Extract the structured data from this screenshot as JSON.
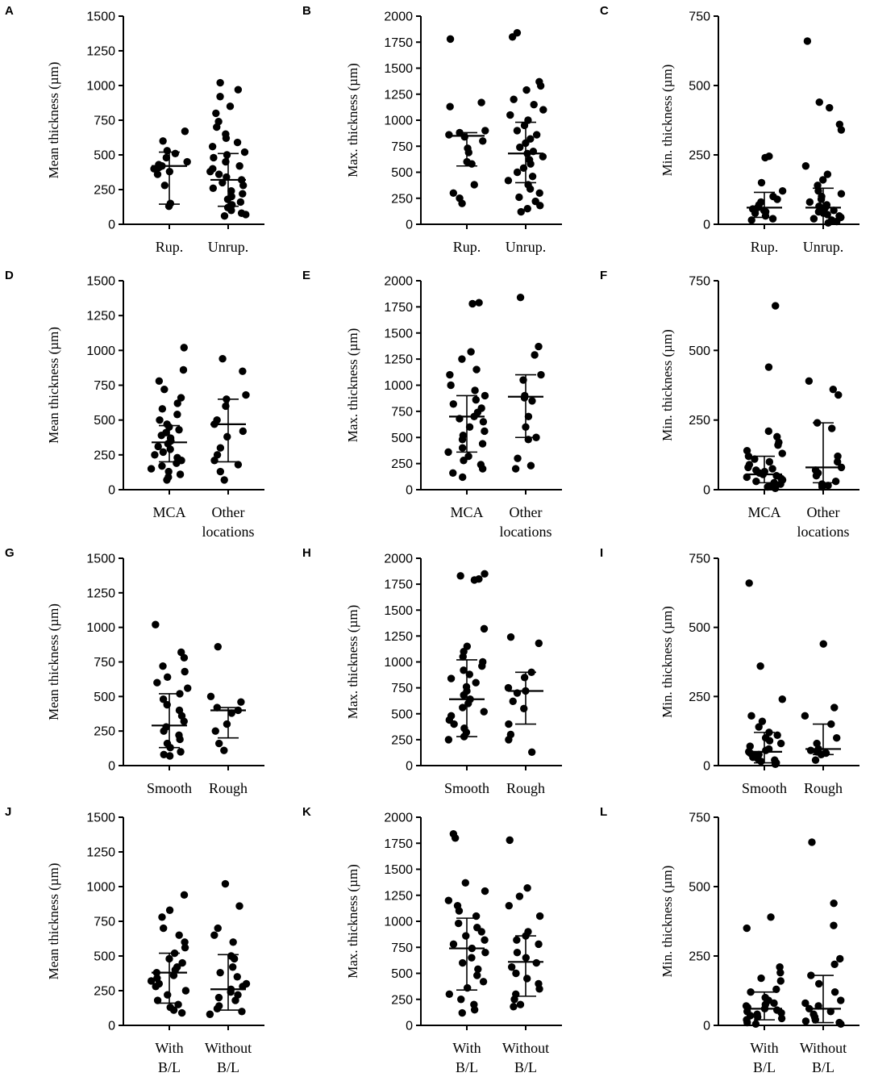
{
  "figure": {
    "panels": [
      "A",
      "B",
      "C",
      "D",
      "E",
      "F",
      "G",
      "H",
      "I",
      "J",
      "K",
      "L"
    ]
  },
  "chart_data": [
    {
      "panel": "A",
      "type": "scatter",
      "ylabel": "Mean thickness (µm)",
      "ylim": [
        0,
        1500
      ],
      "yticks": [
        "0",
        "250",
        "500",
        "750",
        "1000",
        "1250",
        "1500"
      ],
      "categories": [
        {
          "label": [
            "Rup."
          ],
          "center": 420,
          "lower": 145,
          "upper": 520,
          "points": [
            670,
            600,
            530,
            510,
            480,
            450,
            430,
            420,
            410,
            400,
            380,
            360,
            280,
            150,
            130
          ]
        },
        {
          "label": [
            "Unrup."
          ],
          "center": 320,
          "lower": 130,
          "upper": 510,
          "points": [
            1020,
            970,
            920,
            850,
            800,
            740,
            700,
            650,
            620,
            590,
            560,
            520,
            500,
            480,
            450,
            420,
            400,
            380,
            360,
            340,
            320,
            300,
            280,
            260,
            240,
            220,
            200,
            180,
            160,
            140,
            120,
            100,
            80,
            70,
            60
          ]
        }
      ]
    },
    {
      "panel": "B",
      "type": "scatter",
      "ylabel": "Max. thickness (µm)",
      "ylim": [
        0,
        2000
      ],
      "yticks": [
        "0",
        "250",
        "500",
        "750",
        "1000",
        "1250",
        "1500",
        "1750",
        "2000"
      ],
      "categories": [
        {
          "label": [
            "Rup."
          ],
          "center": 850,
          "lower": 560,
          "upper": 880,
          "points": [
            1780,
            1170,
            1130,
            900,
            880,
            860,
            840,
            800,
            730,
            690,
            600,
            580,
            380,
            300,
            250,
            200
          ]
        },
        {
          "label": [
            "Unrup."
          ],
          "center": 680,
          "lower": 400,
          "upper": 980,
          "points": [
            1840,
            1800,
            1370,
            1330,
            1290,
            1200,
            1150,
            1100,
            1050,
            1000,
            950,
            900,
            860,
            820,
            780,
            740,
            700,
            680,
            650,
            620,
            580,
            540,
            500,
            460,
            420,
            380,
            340,
            300,
            260,
            220,
            180,
            150,
            120
          ]
        }
      ]
    },
    {
      "panel": "C",
      "type": "scatter",
      "ylabel": "Min. thickness (µm)",
      "ylim": [
        0,
        750
      ],
      "yticks": [
        "0",
        "250",
        "500",
        "750"
      ],
      "categories": [
        {
          "label": [
            "Rup."
          ],
          "center": 60,
          "lower": 25,
          "upper": 115,
          "points": [
            245,
            240,
            150,
            120,
            100,
            90,
            80,
            70,
            60,
            55,
            50,
            45,
            40,
            30,
            20,
            15
          ]
        },
        {
          "label": [
            "Unrup."
          ],
          "center": 60,
          "lower": 0,
          "upper": 130,
          "points": [
            660,
            440,
            420,
            360,
            340,
            210,
            180,
            160,
            140,
            120,
            110,
            100,
            90,
            80,
            70,
            65,
            60,
            55,
            50,
            45,
            40,
            35,
            30,
            25,
            20,
            15,
            10,
            5
          ]
        }
      ]
    },
    {
      "panel": "D",
      "type": "scatter",
      "ylabel": "Mean thickness (µm)",
      "ylim": [
        0,
        1500
      ],
      "yticks": [
        "0",
        "250",
        "500",
        "750",
        "1000",
        "1250",
        "1500"
      ],
      "categories": [
        {
          "label": [
            "MCA"
          ],
          "center": 340,
          "lower": 200,
          "upper": 460,
          "points": [
            1020,
            860,
            780,
            720,
            660,
            620,
            580,
            540,
            500,
            470,
            450,
            430,
            410,
            390,
            370,
            350,
            330,
            310,
            290,
            270,
            250,
            230,
            210,
            190,
            170,
            150,
            130,
            110,
            90,
            70
          ]
        },
        {
          "label": [
            "Other",
            "locations"
          ],
          "center": 470,
          "lower": 200,
          "upper": 650,
          "points": [
            940,
            850,
            680,
            650,
            600,
            500,
            470,
            420,
            380,
            300,
            250,
            210,
            180,
            130,
            70
          ]
        }
      ]
    },
    {
      "panel": "E",
      "type": "scatter",
      "ylabel": "Max. thickness (µm)",
      "ylim": [
        0,
        2000
      ],
      "yticks": [
        "0",
        "250",
        "500",
        "750",
        "1000",
        "1250",
        "1500",
        "1750",
        "2000"
      ],
      "categories": [
        {
          "label": [
            "MCA"
          ],
          "center": 700,
          "lower": 360,
          "upper": 900,
          "points": [
            1790,
            1780,
            1320,
            1250,
            1150,
            1100,
            1000,
            950,
            900,
            860,
            820,
            780,
            740,
            700,
            680,
            650,
            600,
            560,
            520,
            480,
            440,
            400,
            360,
            320,
            280,
            240,
            200,
            160,
            120
          ]
        },
        {
          "label": [
            "Other",
            "locations"
          ],
          "center": 890,
          "lower": 500,
          "upper": 1100,
          "points": [
            1840,
            1370,
            1290,
            1100,
            1050,
            900,
            880,
            850,
            700,
            600,
            500,
            480,
            300,
            230,
            200
          ]
        }
      ]
    },
    {
      "panel": "F",
      "type": "scatter",
      "ylabel": "Min. thickness (µm)",
      "ylim": [
        0,
        750
      ],
      "yticks": [
        "0",
        "250",
        "500",
        "750"
      ],
      "categories": [
        {
          "label": [
            "MCA"
          ],
          "center": 55,
          "lower": 25,
          "upper": 120,
          "points": [
            660,
            440,
            210,
            190,
            170,
            160,
            140,
            130,
            120,
            110,
            100,
            90,
            80,
            75,
            70,
            65,
            60,
            55,
            50,
            45,
            40,
            35,
            30,
            25,
            20,
            15,
            10,
            5
          ]
        },
        {
          "label": [
            "Other",
            "locations"
          ],
          "center": 80,
          "lower": 25,
          "upper": 240,
          "points": [
            390,
            360,
            340,
            240,
            220,
            120,
            100,
            80,
            70,
            60,
            50,
            30,
            20,
            15,
            10
          ]
        }
      ]
    },
    {
      "panel": "G",
      "type": "scatter",
      "ylabel": "Mean thickness (µm)",
      "ylim": [
        0,
        1500
      ],
      "yticks": [
        "0",
        "250",
        "500",
        "750",
        "1000",
        "1250",
        "1500"
      ],
      "categories": [
        {
          "label": [
            "Smooth"
          ],
          "center": 290,
          "lower": 130,
          "upper": 520,
          "points": [
            1020,
            820,
            780,
            720,
            680,
            640,
            600,
            560,
            520,
            480,
            440,
            400,
            360,
            320,
            280,
            250,
            220,
            190,
            160,
            130,
            100,
            80,
            70
          ]
        },
        {
          "label": [
            "Rough"
          ],
          "center": 400,
          "lower": 200,
          "upper": 420,
          "points": [
            860,
            500,
            460,
            420,
            400,
            380,
            300,
            250,
            160,
            110
          ]
        }
      ]
    },
    {
      "panel": "H",
      "type": "scatter",
      "ylabel": "Max. thickness (µm)",
      "ylim": [
        0,
        2000
      ],
      "yticks": [
        "0",
        "250",
        "500",
        "750",
        "1000",
        "1250",
        "1500",
        "1750",
        "2000"
      ],
      "categories": [
        {
          "label": [
            "Smooth"
          ],
          "center": 640,
          "lower": 280,
          "upper": 1020,
          "points": [
            1850,
            1830,
            1800,
            1790,
            1320,
            1150,
            1100,
            1050,
            1000,
            960,
            920,
            880,
            840,
            800,
            760,
            720,
            680,
            640,
            600,
            560,
            520,
            480,
            440,
            400,
            360,
            320,
            280,
            250
          ]
        },
        {
          "label": [
            "Rough"
          ],
          "center": 720,
          "lower": 400,
          "upper": 900,
          "points": [
            1240,
            1180,
            900,
            850,
            750,
            720,
            700,
            620,
            550,
            400,
            300,
            250,
            130
          ]
        }
      ]
    },
    {
      "panel": "I",
      "type": "scatter",
      "ylabel": "Min. thickness (µm)",
      "ylim": [
        0,
        750
      ],
      "yticks": [
        "0",
        "250",
        "500",
        "750"
      ],
      "categories": [
        {
          "label": [
            "Smooth"
          ],
          "center": 50,
          "lower": 10,
          "upper": 120,
          "points": [
            660,
            360,
            240,
            180,
            160,
            140,
            120,
            110,
            100,
            90,
            80,
            70,
            60,
            55,
            50,
            45,
            40,
            35,
            30,
            25,
            20,
            15,
            10,
            5
          ]
        },
        {
          "label": [
            "Rough"
          ],
          "center": 60,
          "lower": 40,
          "upper": 150,
          "points": [
            440,
            210,
            180,
            150,
            100,
            80,
            60,
            55,
            50,
            45,
            40,
            20
          ]
        }
      ]
    },
    {
      "panel": "J",
      "type": "scatter",
      "ylabel": "Mean thickness (µm)",
      "ylim": [
        0,
        1500
      ],
      "yticks": [
        "0",
        "250",
        "500",
        "750",
        "1000",
        "1250",
        "1500"
      ],
      "categories": [
        {
          "label": [
            "With",
            "B/L"
          ],
          "center": 380,
          "lower": 160,
          "upper": 520,
          "points": [
            940,
            830,
            780,
            700,
            650,
            600,
            560,
            520,
            480,
            450,
            420,
            400,
            380,
            360,
            340,
            320,
            300,
            280,
            250,
            220,
            180,
            150,
            130,
            110,
            90
          ]
        },
        {
          "label": [
            "Without",
            "B/L"
          ],
          "center": 260,
          "lower": 110,
          "upper": 510,
          "points": [
            1020,
            860,
            700,
            650,
            600,
            500,
            480,
            420,
            380,
            350,
            300,
            280,
            260,
            240,
            220,
            200,
            180,
            140,
            120,
            100,
            80
          ]
        }
      ]
    },
    {
      "panel": "K",
      "type": "scatter",
      "ylabel": "Max. thickness (µm)",
      "ylim": [
        0,
        2000
      ],
      "yticks": [
        "0",
        "250",
        "500",
        "750",
        "1000",
        "1250",
        "1500",
        "1750",
        "2000"
      ],
      "categories": [
        {
          "label": [
            "With",
            "B/L"
          ],
          "center": 740,
          "lower": 340,
          "upper": 1030,
          "points": [
            1840,
            1800,
            1370,
            1290,
            1200,
            1150,
            1100,
            1050,
            980,
            940,
            900,
            860,
            820,
            780,
            740,
            700,
            650,
            600,
            540,
            480,
            420,
            360,
            300,
            250,
            200,
            150,
            120
          ]
        },
        {
          "label": [
            "Without",
            "B/L"
          ],
          "center": 610,
          "lower": 280,
          "upper": 860,
          "points": [
            1780,
            1320,
            1240,
            1150,
            1050,
            900,
            860,
            820,
            780,
            700,
            650,
            600,
            560,
            500,
            450,
            400,
            350,
            300,
            250,
            200,
            180
          ]
        }
      ]
    },
    {
      "panel": "L",
      "type": "scatter",
      "ylabel": "Min. thickness (µm)",
      "ylim": [
        0,
        750
      ],
      "yticks": [
        "0",
        "250",
        "500",
        "750"
      ],
      "categories": [
        {
          "label": [
            "With",
            "B/L"
          ],
          "center": 60,
          "lower": 20,
          "upper": 120,
          "points": [
            390,
            350,
            210,
            190,
            170,
            160,
            130,
            120,
            100,
            90,
            80,
            75,
            70,
            65,
            60,
            55,
            50,
            45,
            40,
            35,
            30,
            25,
            20,
            10,
            5
          ]
        },
        {
          "label": [
            "Without",
            "B/L"
          ],
          "center": 60,
          "lower": 10,
          "upper": 180,
          "points": [
            660,
            440,
            360,
            240,
            220,
            180,
            150,
            120,
            90,
            80,
            70,
            60,
            50,
            40,
            30,
            20,
            15,
            10,
            5
          ]
        }
      ]
    }
  ]
}
